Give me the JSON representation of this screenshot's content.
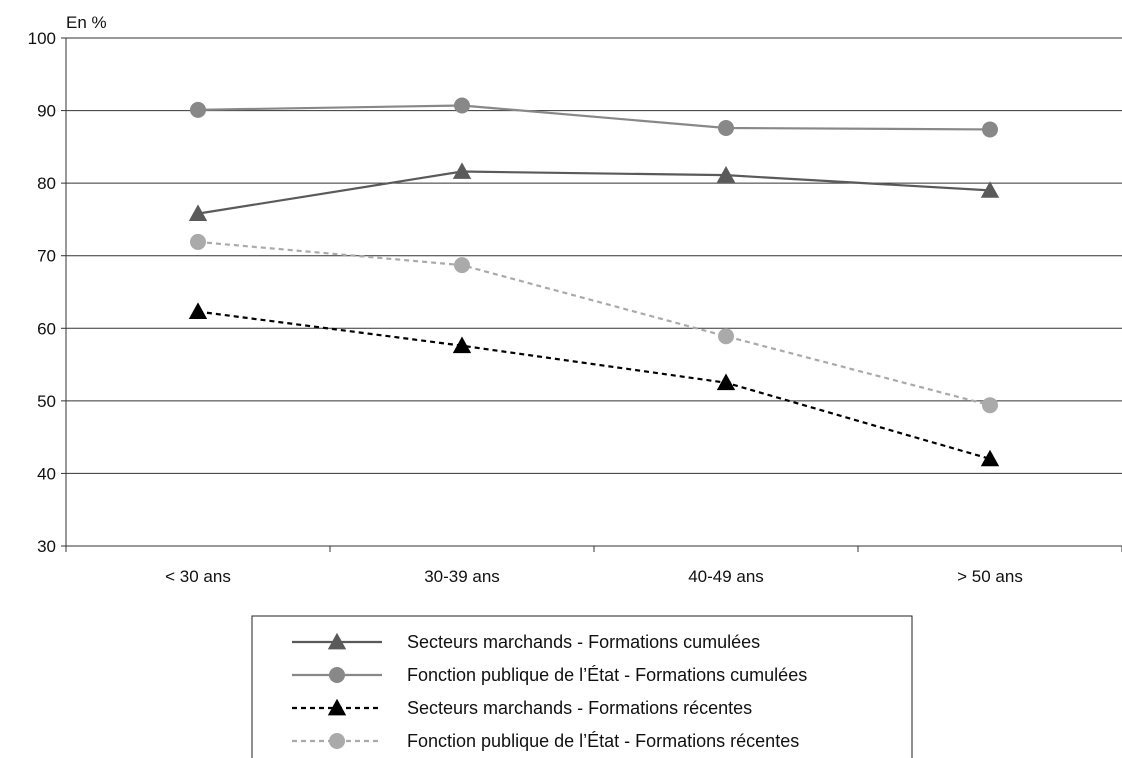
{
  "chart_data": {
    "type": "line",
    "ylabel": "En %",
    "ylim": [
      30,
      100
    ],
    "yticks": [
      30,
      40,
      50,
      60,
      70,
      80,
      90,
      100
    ],
    "categories": [
      "< 30 ans",
      "30-39 ans",
      "40-49 ans",
      "> 50 ans"
    ],
    "grid": true,
    "legend_position": "bottom",
    "series": [
      {
        "name": "Secteurs marchands - Formations cumulées",
        "values": [
          75.8,
          81.6,
          81.1,
          79.0
        ],
        "color": "#5a5a5a",
        "dash": "solid",
        "marker": "triangle"
      },
      {
        "name": "Fonction publique de l’État - Formations cumulées",
        "values": [
          90.1,
          90.7,
          87.6,
          87.4
        ],
        "color": "#888888",
        "dash": "solid",
        "marker": "circle"
      },
      {
        "name": "Secteurs marchands - Formations récentes",
        "values": [
          62.3,
          57.6,
          52.5,
          42.0
        ],
        "color": "#000000",
        "dash": "dashed",
        "marker": "triangle"
      },
      {
        "name": "Fonction publique de l’État - Formations récentes",
        "values": [
          71.9,
          68.7,
          58.9,
          49.4
        ],
        "color": "#aaaaaa",
        "dash": "dashed",
        "marker": "circle"
      }
    ]
  }
}
